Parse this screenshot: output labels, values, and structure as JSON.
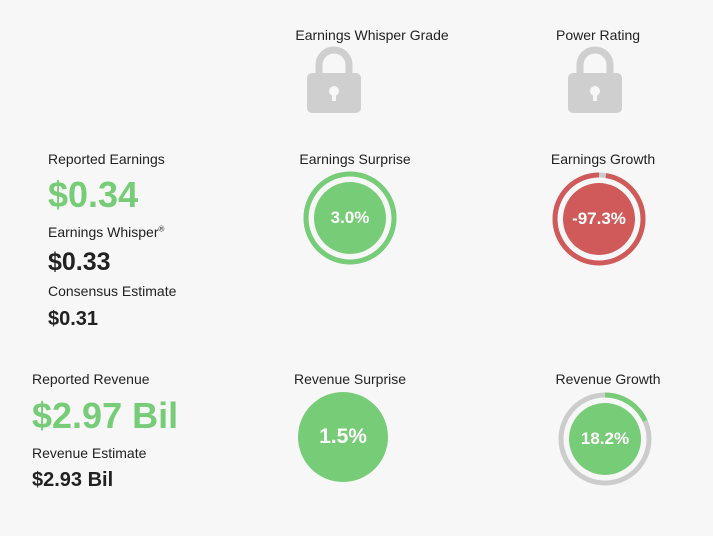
{
  "headers": {
    "whisper_grade": "Earnings Whisper Grade",
    "power_rating": "Power Rating"
  },
  "icons": {
    "lock": "lock-icon"
  },
  "earnings": {
    "reported_label": "Reported Earnings",
    "reported_value": "$0.34",
    "whisper_label": "Earnings Whisper",
    "whisper_mark": "®",
    "whisper_value": "$0.33",
    "consensus_label": "Consensus Estimate",
    "consensus_value": "$0.31",
    "surprise_label": "Earnings Surprise",
    "surprise_value": "3.0%",
    "surprise_fraction": 1.0,
    "growth_label": "Earnings Growth",
    "growth_value": "-97.3%",
    "growth_fraction": 0.973
  },
  "revenue": {
    "reported_label": "Reported Revenue",
    "reported_value": "$2.97 Bil",
    "estimate_label": "Revenue Estimate",
    "estimate_value": "$2.93 Bil",
    "surprise_label": "Revenue Surprise",
    "surprise_value": "1.5%",
    "growth_label": "Revenue Growth",
    "growth_value": "18.2%",
    "growth_fraction": 0.182
  },
  "colors": {
    "green": "#77cc77",
    "red": "#d05a5a",
    "gray": "#cccccc",
    "lock": "#cfcfcf"
  }
}
